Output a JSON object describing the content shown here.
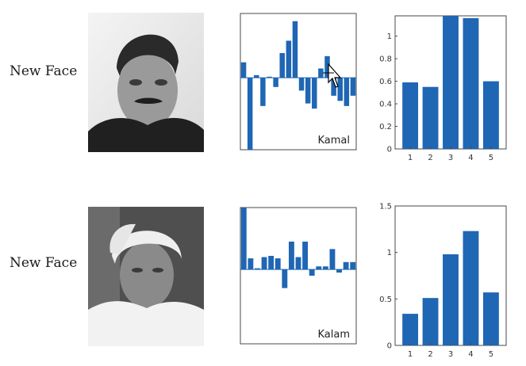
{
  "rows": [
    {
      "label": "New Face",
      "photo_icon": "face-photo-kamal",
      "feature_chart": {
        "type": "bar",
        "name": "Kamal",
        "ylim": [
          -1.4,
          1.25
        ],
        "values": [
          0.3,
          -1.4,
          0.05,
          -0.55,
          0.02,
          -0.18,
          0.48,
          0.72,
          1.1,
          -0.25,
          -0.5,
          -0.6,
          0.18,
          0.42,
          -0.35,
          -0.45,
          -0.55,
          -0.35
        ]
      },
      "score_chart": {
        "type": "bar",
        "categories": [
          "1",
          "2",
          "3",
          "4",
          "5"
        ],
        "values": [
          0.59,
          0.55,
          1.18,
          1.16,
          0.6
        ],
        "ylim": [
          0,
          1.18
        ],
        "yticks": [
          0,
          0.2,
          0.4,
          0.6,
          0.8,
          1
        ],
        "ytick_labels": [
          "0",
          "0.2",
          "0.4",
          "0.6",
          "0.8",
          "1"
        ]
      }
    },
    {
      "label": "New Face",
      "photo_icon": "face-photo-kalam",
      "feature_chart": {
        "type": "bar",
        "name": "Kalam",
        "ylim": [
          -1.2,
          1.0
        ],
        "values": [
          1.0,
          0.18,
          0.02,
          0.2,
          0.22,
          0.18,
          -0.3,
          0.45,
          0.2,
          0.45,
          -0.1,
          0.05,
          0.05,
          0.33,
          -0.05,
          0.12,
          0.12
        ]
      },
      "score_chart": {
        "type": "bar",
        "categories": [
          "1",
          "2",
          "3",
          "4",
          "5"
        ],
        "values": [
          0.34,
          0.51,
          0.98,
          1.23,
          0.57
        ],
        "ylim": [
          0,
          1.5
        ],
        "yticks": [
          0,
          0.5,
          1,
          1.5
        ],
        "ytick_labels": [
          "0",
          "0.5",
          "1",
          "1.5"
        ]
      }
    }
  ],
  "colors": {
    "bar": "#1f66b4",
    "axis": "#4a4a4a"
  },
  "cursor_icon": "move-cursor-icon"
}
